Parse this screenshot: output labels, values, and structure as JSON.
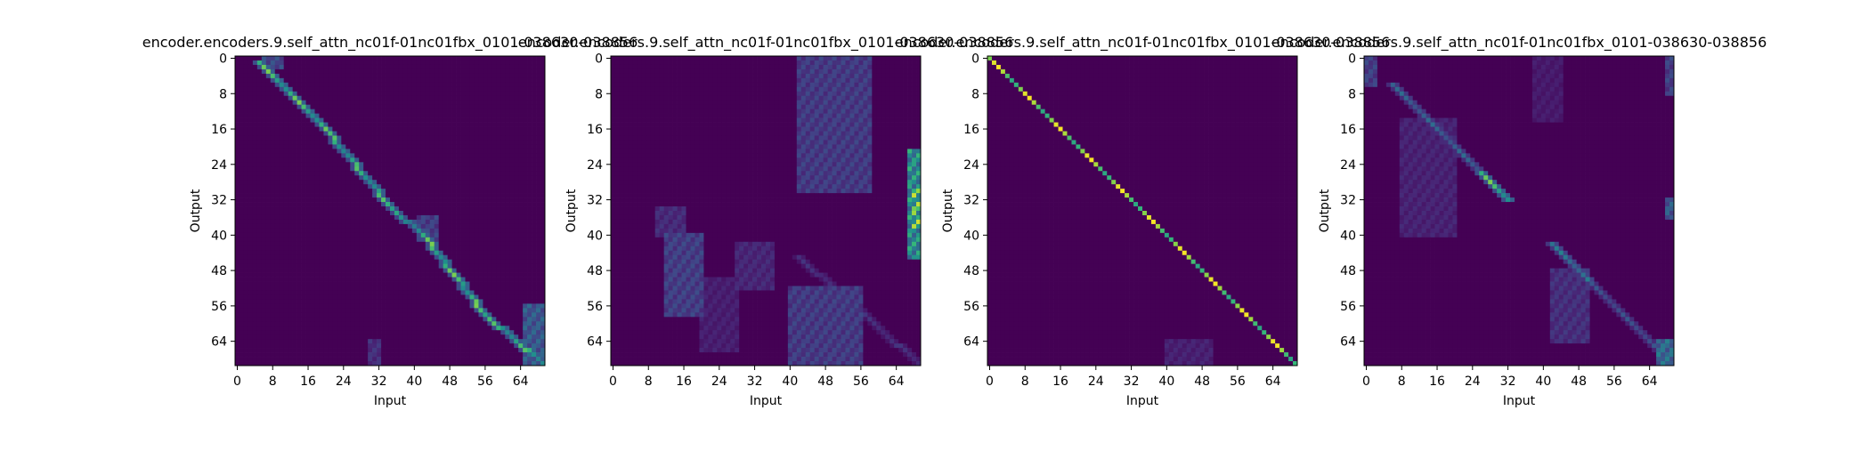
{
  "chart_data": [
    {
      "type": "heatmap",
      "title": "encoder.encoders.9.self_attn_nc01f-01nc01fbx_0101-038630-038856",
      "xlabel": "Input",
      "ylabel": "Output",
      "x_ticks": [
        "0",
        "8",
        "16",
        "24",
        "32",
        "40",
        "48",
        "56",
        "64"
      ],
      "y_ticks": [
        "0",
        "8",
        "16",
        "24",
        "32",
        "40",
        "48",
        "56",
        "64"
      ],
      "matrix_size": 70,
      "colormap": "viridis",
      "pattern": {
        "diagonal": [
          {
            "from": [
              5,
              1
            ],
            "to": [
              20,
              16
            ],
            "weight": 0.85
          },
          {
            "from": [
              20,
              16
            ],
            "to": [
              34,
              33
            ],
            "weight": 0.8
          },
          {
            "from": [
              34,
              33
            ],
            "to": [
              42,
              40
            ],
            "weight": 0.7
          },
          {
            "from": [
              42,
              40
            ],
            "to": [
              56,
              58
            ],
            "weight": 0.85
          },
          {
            "from": [
              56,
              58
            ],
            "to": [
              69,
              69
            ],
            "weight": 0.8
          }
        ],
        "bands": [
          {
            "x": [
              6,
              10
            ],
            "y": [
              0,
              2
            ],
            "weight": 0.35
          },
          {
            "x": [
              65,
              69
            ],
            "y": [
              56,
              69
            ],
            "weight": 0.45
          },
          {
            "x": [
              41,
              45
            ],
            "y": [
              36,
              41
            ],
            "weight": 0.3
          },
          {
            "x": [
              30,
              32
            ],
            "y": [
              64,
              69
            ],
            "weight": 0.22
          }
        ]
      }
    },
    {
      "type": "heatmap",
      "title": "encoder.encoders.9.self_attn_nc01f-01nc01fbx_0101-038630-038856",
      "xlabel": "Input",
      "ylabel": "Output",
      "x_ticks": [
        "0",
        "8",
        "16",
        "24",
        "32",
        "40",
        "48",
        "56",
        "64"
      ],
      "y_ticks": [
        "0",
        "8",
        "16",
        "24",
        "32",
        "40",
        "48",
        "56",
        "64"
      ],
      "matrix_size": 70,
      "colormap": "viridis",
      "pattern": {
        "diagonal": [
          {
            "from": [
              42,
              45
            ],
            "to": [
              69,
              69
            ],
            "weight": 0.2
          }
        ],
        "bands": [
          {
            "x": [
              67,
              69
            ],
            "y": [
              21,
              45
            ],
            "weight": 0.75
          },
          {
            "x": [
              68,
              69
            ],
            "y": [
              30,
              38
            ],
            "weight": 0.95
          },
          {
            "x": [
              42,
              58
            ],
            "y": [
              0,
              30
            ],
            "weight": 0.28
          },
          {
            "x": [
              12,
              20
            ],
            "y": [
              40,
              58
            ],
            "weight": 0.3
          },
          {
            "x": [
              10,
              16
            ],
            "y": [
              34,
              40
            ],
            "weight": 0.2
          },
          {
            "x": [
              28,
              36
            ],
            "y": [
              42,
              52
            ],
            "weight": 0.18
          },
          {
            "x": [
              40,
              56
            ],
            "y": [
              52,
              69
            ],
            "weight": 0.28
          },
          {
            "x": [
              20,
              28
            ],
            "y": [
              50,
              66
            ],
            "weight": 0.14
          }
        ]
      }
    },
    {
      "type": "heatmap",
      "title": "encoder.encoders.9.self_attn_nc01f-01nc01fbx_0101-038630-038856",
      "xlabel": "Input",
      "ylabel": "Output",
      "x_ticks": [
        "0",
        "8",
        "16",
        "24",
        "32",
        "40",
        "48",
        "56",
        "64"
      ],
      "y_ticks": [
        "0",
        "8",
        "16",
        "24",
        "32",
        "40",
        "48",
        "56",
        "64"
      ],
      "matrix_size": 70,
      "colormap": "viridis",
      "pattern": {
        "diagonal": [
          {
            "from": [
              0,
              0
            ],
            "to": [
              69,
              69
            ],
            "weight": 1.0
          }
        ],
        "bands": [
          {
            "x": [
              40,
              50
            ],
            "y": [
              64,
              69
            ],
            "weight": 0.15
          }
        ]
      }
    },
    {
      "type": "heatmap",
      "title": "encoder.encoders.9.self_attn_nc01f-01nc01fbx_0101-038630-038856",
      "xlabel": "Input",
      "ylabel": "Output",
      "x_ticks": [
        "0",
        "8",
        "16",
        "24",
        "32",
        "40",
        "48",
        "56",
        "64"
      ],
      "y_ticks": [
        "0",
        "8",
        "16",
        "24",
        "32",
        "40",
        "48",
        "56",
        "64"
      ],
      "matrix_size": 70,
      "colormap": "viridis",
      "pattern": {
        "diagonal": [
          {
            "from": [
              6,
              6
            ],
            "to": [
              26,
              26
            ],
            "weight": 0.45
          },
          {
            "from": [
              26,
              26
            ],
            "to": [
              32,
              32
            ],
            "weight": 0.85
          },
          {
            "from": [
              42,
              42
            ],
            "to": [
              50,
              50
            ],
            "weight": 0.55
          },
          {
            "from": [
              50,
              50
            ],
            "to": [
              69,
              69
            ],
            "weight": 0.35
          }
        ],
        "bands": [
          {
            "x": [
              0,
              2
            ],
            "y": [
              0,
              6
            ],
            "weight": 0.3
          },
          {
            "x": [
              68,
              69
            ],
            "y": [
              0,
              8
            ],
            "weight": 0.3
          },
          {
            "x": [
              68,
              69
            ],
            "y": [
              32,
              36
            ],
            "weight": 0.45
          },
          {
            "x": [
              66,
              69
            ],
            "y": [
              64,
              69
            ],
            "weight": 0.55
          },
          {
            "x": [
              8,
              20
            ],
            "y": [
              14,
              40
            ],
            "weight": 0.16
          },
          {
            "x": [
              42,
              50
            ],
            "y": [
              48,
              64
            ],
            "weight": 0.22
          },
          {
            "x": [
              38,
              44
            ],
            "y": [
              0,
              14
            ],
            "weight": 0.12
          }
        ]
      }
    }
  ]
}
